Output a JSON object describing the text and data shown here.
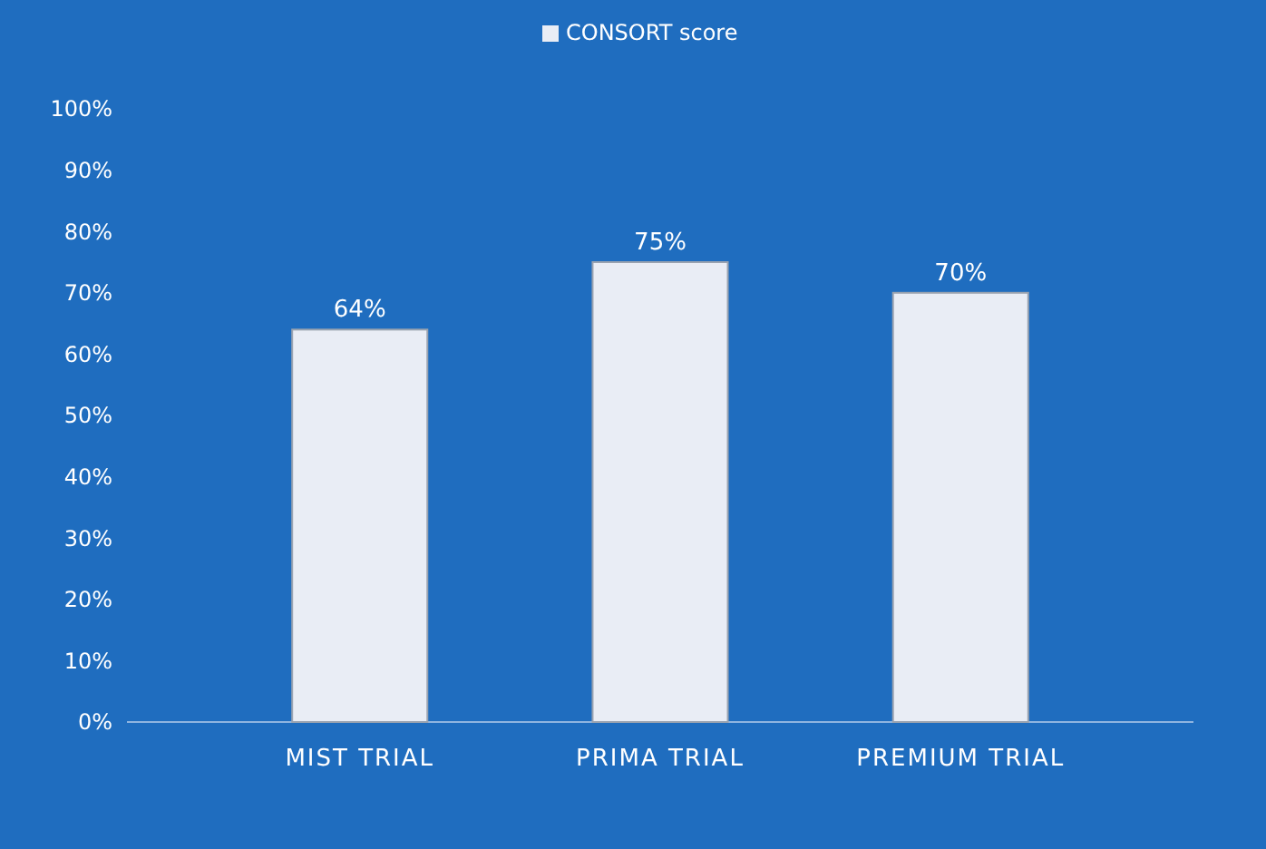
{
  "chart_data": {
    "type": "bar",
    "categories": [
      "MIST TRIAL",
      "PRIMA TRIAL",
      "PREMIUM TRIAL"
    ],
    "series": [
      {
        "name": "CONSORT score",
        "color": "#e9edf5",
        "values": [
          64,
          75,
          70
        ]
      }
    ],
    "value_labels": [
      "64%",
      "75%",
      "70%"
    ],
    "ylim": [
      0,
      100
    ],
    "yticks": [
      {
        "value": 0,
        "label": "0%"
      },
      {
        "value": 10,
        "label": "10%"
      },
      {
        "value": 20,
        "label": "20%"
      },
      {
        "value": 30,
        "label": "30%"
      },
      {
        "value": 40,
        "label": "40%"
      },
      {
        "value": 50,
        "label": "50%"
      },
      {
        "value": 60,
        "label": "60%"
      },
      {
        "value": 70,
        "label": "70%"
      },
      {
        "value": 80,
        "label": "80%"
      },
      {
        "value": 90,
        "label": "90%"
      },
      {
        "value": 100,
        "label": "100%"
      }
    ],
    "legend": "top"
  }
}
